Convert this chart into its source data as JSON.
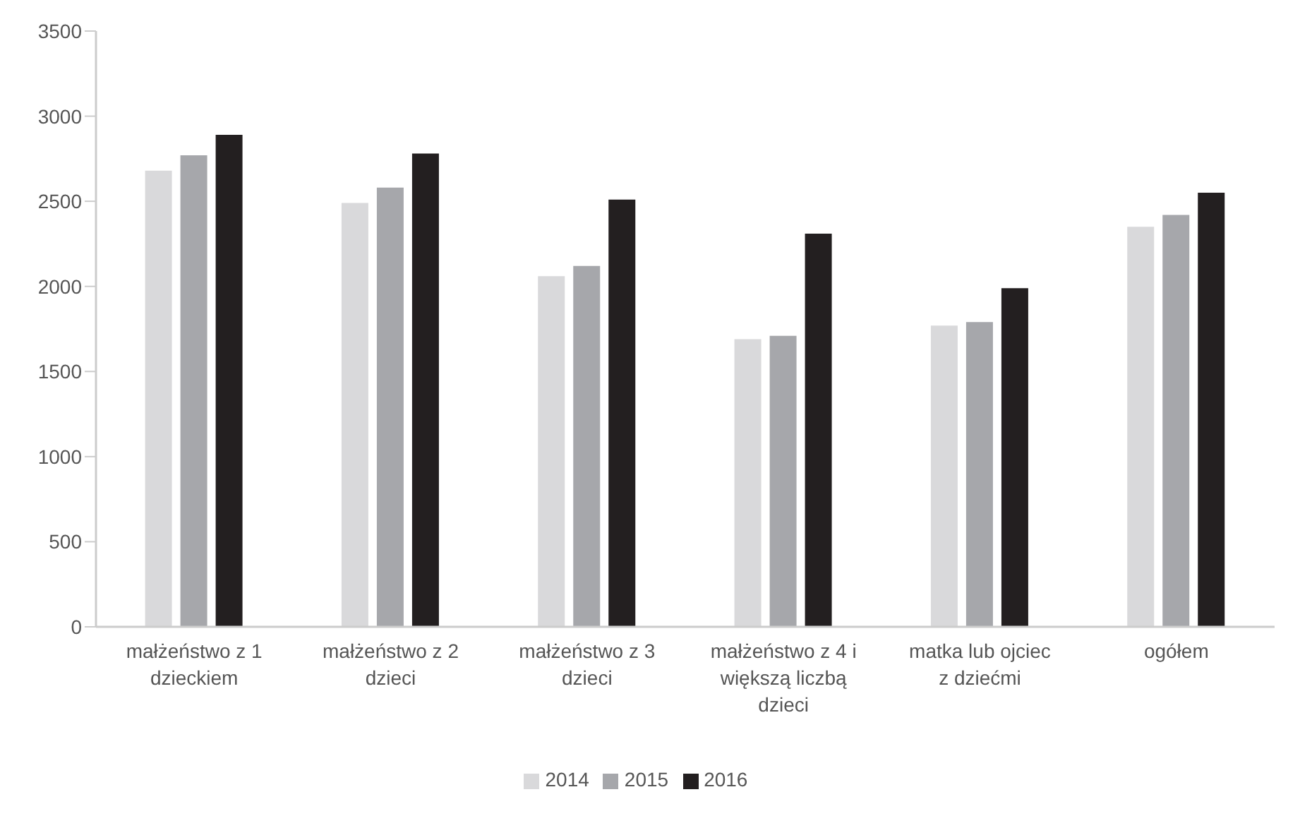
{
  "chart_data": {
    "type": "bar",
    "categories": [
      "małżeństwo z 1 dzieckiem",
      "małżeństwo z 2 dzieci",
      "małżeństwo z 3 dzieci",
      "małżeństwo z 4 i większą liczbą dzieci",
      "matka lub ojciec z dziećmi",
      "ogółem"
    ],
    "series": [
      {
        "name": "2014",
        "color": "#d9d9db",
        "values": [
          2680,
          2490,
          2060,
          1690,
          1770,
          2350
        ]
      },
      {
        "name": "2015",
        "color": "#a6a7ab",
        "values": [
          2770,
          2580,
          2120,
          1710,
          1790,
          2420
        ]
      },
      {
        "name": "2016",
        "color": "#231f20",
        "values": [
          2890,
          2780,
          2510,
          2310,
          1990,
          2550
        ]
      }
    ],
    "ylim": [
      0,
      3500
    ],
    "yticks": [
      0,
      500,
      1000,
      1500,
      2000,
      2500,
      3000,
      3500
    ],
    "grid": false,
    "legend": "bottom"
  }
}
